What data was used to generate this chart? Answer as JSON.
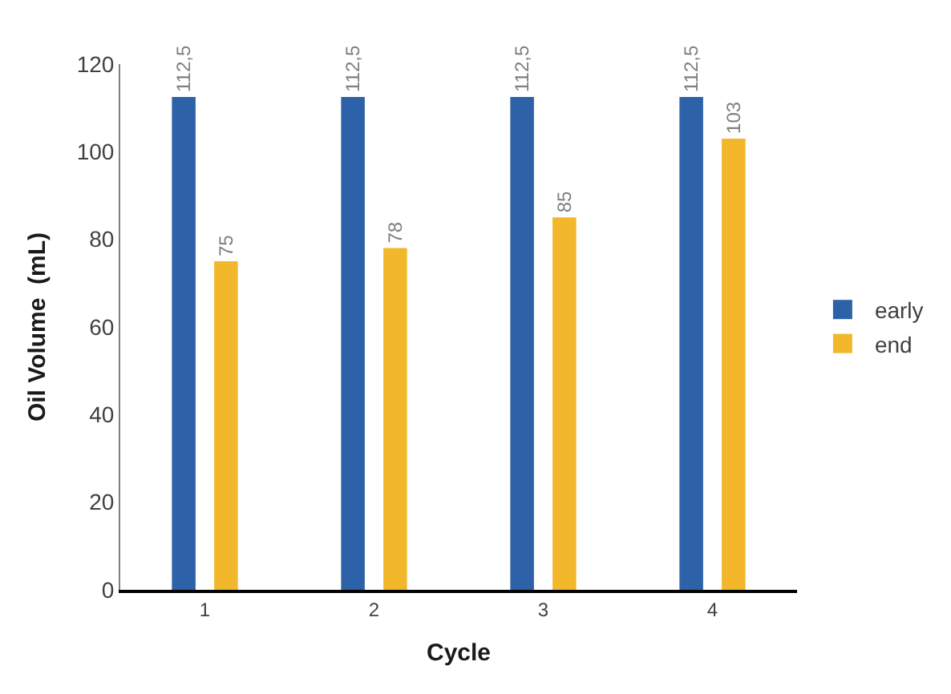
{
  "chart_data": {
    "type": "bar",
    "xlabel": "Cycle",
    "ylabel": "Oil Volume  (mL)",
    "categories": [
      "1",
      "2",
      "3",
      "4"
    ],
    "series": [
      {
        "name": "early",
        "color": "#2e62a8",
        "values": [
          112.5,
          112.5,
          112.5,
          112.5
        ],
        "value_labels": [
          "112,5",
          "112,5",
          "112,5",
          "112,5"
        ]
      },
      {
        "name": "end",
        "color": "#f2b72a",
        "values": [
          75,
          78,
          85,
          103
        ],
        "value_labels": [
          "75",
          "78",
          "85",
          "103"
        ]
      }
    ],
    "ylim": [
      0,
      120
    ],
    "yticks": [
      0,
      20,
      40,
      60,
      80,
      100,
      120
    ],
    "legend": "right"
  }
}
